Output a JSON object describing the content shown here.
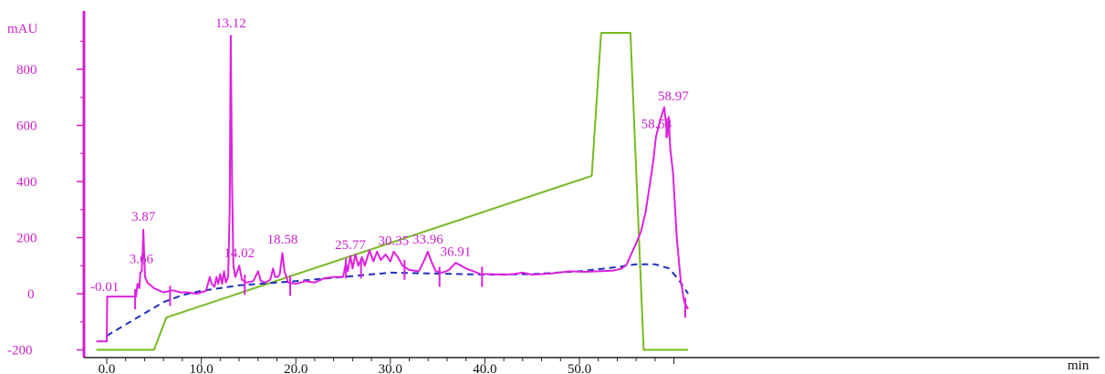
{
  "chart_data": {
    "type": "line",
    "ylabel": "mAU",
    "xlabel": "min",
    "xlim": [
      -1.2,
      62.5
    ],
    "ylim": [
      -200,
      940
    ],
    "y_ticks": [
      {
        "value": 800,
        "label": "800"
      },
      {
        "value": 600,
        "label": "600"
      },
      {
        "value": 400,
        "label": "400"
      },
      {
        "value": 200,
        "label": "200"
      },
      {
        "value": 0,
        "label": "0"
      },
      {
        "value": -200,
        "label": "-200"
      }
    ],
    "x_ticks": [
      {
        "value": 0,
        "label": "0.0"
      },
      {
        "value": 10,
        "label": "10.0"
      },
      {
        "value": 20,
        "label": "20.0"
      },
      {
        "value": 30,
        "label": "30.0"
      },
      {
        "value": 40,
        "label": "40.0"
      },
      {
        "value": 50,
        "label": "50.0"
      }
    ],
    "colors": {
      "signal": "#dd22dd",
      "gradient": "#77bb22",
      "baseline": "#1f2fbf",
      "axis": "#cc22cc"
    },
    "series": [
      {
        "key": "signal",
        "style": "solid",
        "points": [
          [
            -1.1,
            -170
          ],
          [
            0.0,
            -170
          ],
          [
            0.05,
            -10
          ],
          [
            3.0,
            -10
          ],
          [
            3.1,
            -10
          ],
          [
            3.25,
            35
          ],
          [
            3.45,
            20
          ],
          [
            3.55,
            75
          ],
          [
            3.7,
            80
          ],
          [
            3.8,
            150
          ],
          [
            3.87,
            228
          ],
          [
            3.95,
            150
          ],
          [
            4.05,
            60
          ],
          [
            4.3,
            40
          ],
          [
            5.0,
            20
          ],
          [
            6.0,
            5
          ],
          [
            7.0,
            12
          ],
          [
            7.8,
            5
          ],
          [
            8.5,
            5
          ],
          [
            9.5,
            0
          ],
          [
            10.5,
            10
          ],
          [
            10.9,
            60
          ],
          [
            11.1,
            35
          ],
          [
            11.4,
            25
          ],
          [
            11.6,
            60
          ],
          [
            11.8,
            35
          ],
          [
            12.0,
            70
          ],
          [
            12.2,
            35
          ],
          [
            12.4,
            80
          ],
          [
            12.6,
            40
          ],
          [
            12.85,
            60
          ],
          [
            13.0,
            300
          ],
          [
            13.12,
            920
          ],
          [
            13.25,
            400
          ],
          [
            13.4,
            100
          ],
          [
            13.6,
            60
          ],
          [
            14.02,
            100
          ],
          [
            14.3,
            50
          ],
          [
            14.8,
            40
          ],
          [
            15.5,
            45
          ],
          [
            16.0,
            80
          ],
          [
            16.3,
            45
          ],
          [
            16.8,
            40
          ],
          [
            17.3,
            50
          ],
          [
            17.6,
            90
          ],
          [
            17.8,
            60
          ],
          [
            18.1,
            60
          ],
          [
            18.3,
            70
          ],
          [
            18.58,
            145
          ],
          [
            18.8,
            80
          ],
          [
            19.2,
            40
          ],
          [
            20.0,
            35
          ],
          [
            21.0,
            45
          ],
          [
            22.0,
            40
          ],
          [
            23.0,
            55
          ],
          [
            24.0,
            60
          ],
          [
            25.0,
            60
          ],
          [
            25.3,
            110
          ],
          [
            25.5,
            80
          ],
          [
            25.77,
            135
          ],
          [
            26.0,
            90
          ],
          [
            26.3,
            140
          ],
          [
            26.6,
            100
          ],
          [
            27.0,
            130
          ],
          [
            27.3,
            100
          ],
          [
            27.8,
            155
          ],
          [
            28.2,
            115
          ],
          [
            28.6,
            150
          ],
          [
            29.0,
            120
          ],
          [
            29.5,
            140
          ],
          [
            30.0,
            115
          ],
          [
            30.35,
            150
          ],
          [
            30.8,
            130
          ],
          [
            31.3,
            100
          ],
          [
            32.0,
            85
          ],
          [
            33.0,
            80
          ],
          [
            33.6,
            120
          ],
          [
            33.96,
            150
          ],
          [
            34.4,
            110
          ],
          [
            34.8,
            80
          ],
          [
            35.5,
            75
          ],
          [
            36.2,
            85
          ],
          [
            36.91,
            110
          ],
          [
            37.5,
            100
          ],
          [
            38.0,
            90
          ],
          [
            38.8,
            80
          ],
          [
            39.5,
            70
          ],
          [
            40.5,
            70
          ],
          [
            42.0,
            68
          ],
          [
            43.0,
            70
          ],
          [
            44.0,
            75
          ],
          [
            45.0,
            68
          ],
          [
            47.0,
            72
          ],
          [
            49.0,
            80
          ],
          [
            50.5,
            78
          ],
          [
            52.0,
            80
          ],
          [
            53.5,
            82
          ],
          [
            54.5,
            90
          ],
          [
            55.0,
            105
          ],
          [
            55.6,
            150
          ],
          [
            56.0,
            180
          ],
          [
            56.5,
            220
          ],
          [
            57.0,
            290
          ],
          [
            57.4,
            380
          ],
          [
            57.8,
            470
          ],
          [
            58.1,
            560
          ],
          [
            58.4,
            600
          ],
          [
            58.54,
            620
          ],
          [
            58.75,
            640
          ],
          [
            58.97,
            665
          ],
          [
            59.15,
            610
          ],
          [
            59.3,
            560
          ],
          [
            59.45,
            630
          ],
          [
            59.6,
            520
          ],
          [
            59.9,
            430
          ],
          [
            60.3,
            200
          ],
          [
            60.7,
            50
          ],
          [
            61.1,
            -30
          ],
          [
            61.5,
            -55
          ]
        ]
      },
      {
        "key": "gradient",
        "style": "solid",
        "points": [
          [
            -1.1,
            -200
          ],
          [
            5.0,
            -200
          ],
          [
            6.3,
            -85
          ],
          [
            51.3,
            420
          ],
          [
            52.3,
            930
          ],
          [
            55.4,
            930
          ],
          [
            56.8,
            -200
          ],
          [
            61.5,
            -200
          ]
        ]
      },
      {
        "key": "baseline",
        "style": "dashed",
        "points": [
          [
            0.0,
            -150
          ],
          [
            2.0,
            -110
          ],
          [
            4.0,
            -70
          ],
          [
            6.0,
            -30
          ],
          [
            8.0,
            -5
          ],
          [
            10.0,
            10
          ],
          [
            14.0,
            30
          ],
          [
            20.0,
            45
          ],
          [
            25.0,
            60
          ],
          [
            30.0,
            75
          ],
          [
            35.0,
            72
          ],
          [
            40.0,
            68
          ],
          [
            45.0,
            70
          ],
          [
            50.0,
            80
          ],
          [
            54.0,
            95
          ],
          [
            56.0,
            105
          ],
          [
            58.0,
            105
          ],
          [
            59.5,
            90
          ],
          [
            60.5,
            50
          ],
          [
            61.5,
            0
          ]
        ]
      }
    ],
    "peak_labels": [
      {
        "text": "-0.01",
        "x": 0.0,
        "y": 0
      },
      {
        "text": "3.66",
        "x": 3.66,
        "y": 90
      },
      {
        "text": "3.87",
        "x": 3.87,
        "y": 240
      },
      {
        "text": "13.12",
        "x": 13.12,
        "y": 930
      },
      {
        "text": "14.02",
        "x": 14.02,
        "y": 110
      },
      {
        "text": "18.58",
        "x": 18.58,
        "y": 160
      },
      {
        "text": "25.77",
        "x": 25.77,
        "y": 140
      },
      {
        "text": "30.35",
        "x": 30.35,
        "y": 155
      },
      {
        "text": "33.96",
        "x": 33.96,
        "y": 160
      },
      {
        "text": "36.91",
        "x": 36.91,
        "y": 115
      },
      {
        "text": "58.54",
        "x": 58.54,
        "y": 570
      },
      {
        "text": "58.97",
        "x": 58.97,
        "y": 670
      }
    ],
    "event_markers": [
      {
        "x": 3.0,
        "y": -10
      },
      {
        "x": 6.7,
        "y": 2
      },
      {
        "x": 14.6,
        "y": 42
      },
      {
        "x": 19.4,
        "y": 38
      },
      {
        "x": 25.3,
        "y": 100
      },
      {
        "x": 26.9,
        "y": 100
      },
      {
        "x": 31.5,
        "y": 95
      },
      {
        "x": 35.2,
        "y": 70
      },
      {
        "x": 39.7,
        "y": 70
      },
      {
        "x": 59.2,
        "y": 600
      },
      {
        "x": 61.2,
        "y": -40
      }
    ]
  }
}
